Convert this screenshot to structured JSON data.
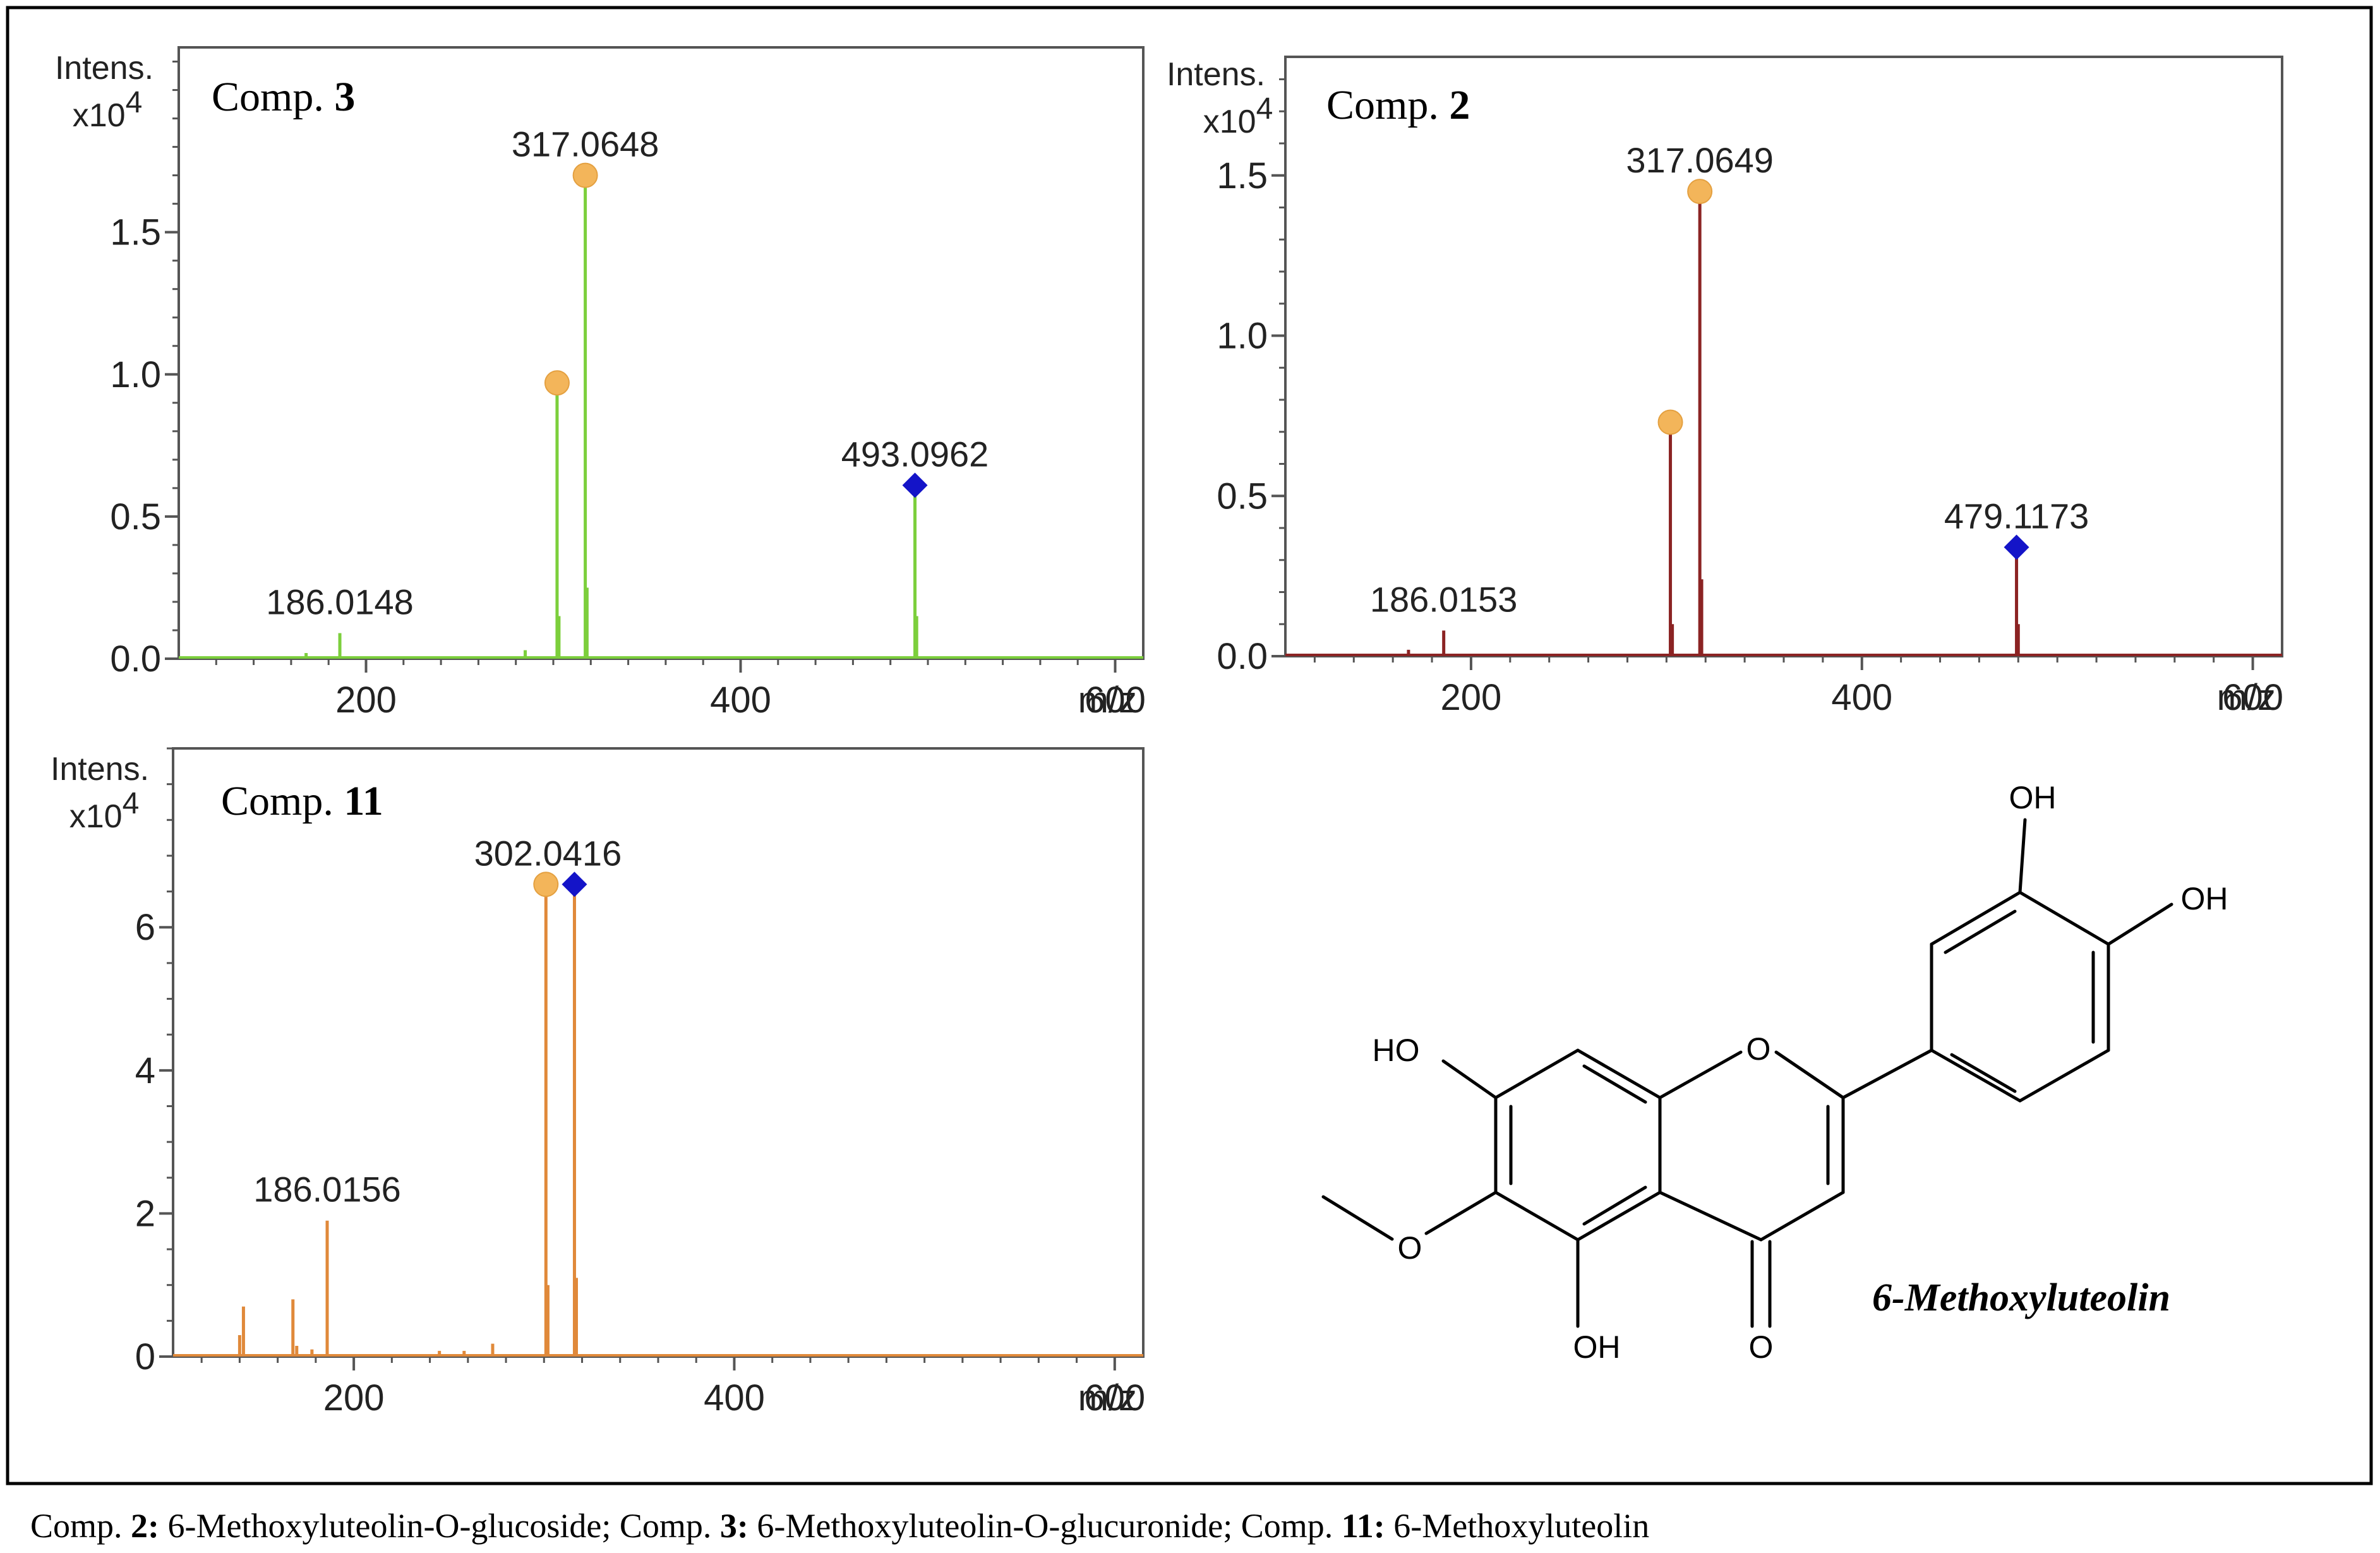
{
  "figure": {
    "caption": [
      {
        "prefix": "Comp. ",
        "num": "2:",
        "text": " 6-Methoxyluteolin-O-glucoside; "
      },
      {
        "prefix": "Comp. ",
        "num": "3:",
        "text": " 6-Methoxyluteolin-O-glucuronide; "
      },
      {
        "prefix": "Comp. ",
        "num": "11:",
        "text": " 6-Methoxyluteolin"
      }
    ],
    "structure": {
      "name": "6-Methoxyluteolin",
      "labels": {
        "oh_top": "OH",
        "oh_right": "OH",
        "ho_left": "HO",
        "o_ring": "O",
        "o_methoxy": "O",
        "oh_bottom": "OH",
        "o_carbonyl": "O"
      }
    }
  },
  "chart_data": [
    {
      "type": "bar",
      "subtype": "mass-spectrum",
      "panel": "top-left",
      "title_prefix": "Comp. ",
      "title_number": "3",
      "ylabel": "Intens.",
      "yscale_label": "x10",
      "yscale_exp": "4",
      "xlabel": "m/z",
      "xlim": [
        100,
        615
      ],
      "ylim": [
        0,
        2.15
      ],
      "xticks": [
        200,
        400,
        600
      ],
      "yticks": [
        0.0,
        0.5,
        1.0,
        1.5
      ],
      "ytick_labels": [
        "0.0",
        "0.5",
        "1.0",
        "1.5"
      ],
      "ytick_minor_step": 0.1,
      "series_color": "#7ccf3c",
      "peaks": [
        {
          "mz": 168,
          "intensity": 0.02
        },
        {
          "mz": 186.0148,
          "intensity": 0.09
        },
        {
          "mz": 285,
          "intensity": 0.03
        },
        {
          "mz": 302,
          "intensity": 0.97
        },
        {
          "mz": 303,
          "intensity": 0.15
        },
        {
          "mz": 317.0648,
          "intensity": 1.7
        },
        {
          "mz": 318,
          "intensity": 0.25
        },
        {
          "mz": 493.0962,
          "intensity": 0.61
        },
        {
          "mz": 494,
          "intensity": 0.15
        }
      ],
      "peak_labels": [
        {
          "mz": 186.0148,
          "text": "186.0148"
        },
        {
          "mz": 317.0648,
          "text": "317.0648"
        },
        {
          "mz": 493.0962,
          "text": "493.0962"
        }
      ],
      "markers": [
        {
          "mz": 302,
          "intensity": 0.97,
          "shape": "circle"
        },
        {
          "mz": 317.0648,
          "intensity": 1.7,
          "shape": "circle"
        },
        {
          "mz": 493.0962,
          "intensity": 0.61,
          "shape": "diamond"
        }
      ]
    },
    {
      "type": "bar",
      "subtype": "mass-spectrum",
      "panel": "top-right",
      "title_prefix": "Comp. ",
      "title_number": "2",
      "ylabel": "Intens.",
      "yscale_label": "x10",
      "yscale_exp": "4",
      "xlabel": "m/z",
      "xlim": [
        105,
        615
      ],
      "ylim": [
        0,
        1.87
      ],
      "xticks": [
        200,
        400,
        600
      ],
      "yticks": [
        0.0,
        0.5,
        1.0,
        1.5
      ],
      "ytick_labels": [
        "0.0",
        "0.5",
        "1.0",
        "1.5"
      ],
      "ytick_minor_step": 0.1,
      "series_color": "#8b2323",
      "peaks": [
        {
          "mz": 168,
          "intensity": 0.02
        },
        {
          "mz": 186.0153,
          "intensity": 0.08
        },
        {
          "mz": 302,
          "intensity": 0.73
        },
        {
          "mz": 303,
          "intensity": 0.1
        },
        {
          "mz": 317.0649,
          "intensity": 1.45
        },
        {
          "mz": 318,
          "intensity": 0.24
        },
        {
          "mz": 479.1173,
          "intensity": 0.34
        },
        {
          "mz": 480,
          "intensity": 0.1
        }
      ],
      "peak_labels": [
        {
          "mz": 186.0153,
          "text": "186.0153"
        },
        {
          "mz": 317.0649,
          "text": "317.0649"
        },
        {
          "mz": 479.1173,
          "text": "479.1173"
        }
      ],
      "markers": [
        {
          "mz": 302,
          "intensity": 0.73,
          "shape": "circle"
        },
        {
          "mz": 317.0649,
          "intensity": 1.45,
          "shape": "circle"
        },
        {
          "mz": 479.1173,
          "intensity": 0.34,
          "shape": "diamond"
        }
      ]
    },
    {
      "type": "bar",
      "subtype": "mass-spectrum",
      "panel": "bottom-left",
      "title_prefix": "Comp. ",
      "title_number": "11",
      "ylabel": "Intens.",
      "yscale_label": "x10",
      "yscale_exp": "4",
      "xlabel": "m/z",
      "xlim": [
        105,
        615
      ],
      "ylim": [
        0,
        8.5
      ],
      "xticks": [
        200,
        400,
        600
      ],
      "yticks": [
        0,
        2,
        4,
        6
      ],
      "ytick_labels": [
        "0",
        "2",
        "4",
        "6"
      ],
      "ytick_minor_step": 0.5,
      "series_color": "#e0893a",
      "peaks": [
        {
          "mz": 140,
          "intensity": 0.3
        },
        {
          "mz": 142,
          "intensity": 0.7
        },
        {
          "mz": 168,
          "intensity": 0.8
        },
        {
          "mz": 170,
          "intensity": 0.15
        },
        {
          "mz": 178,
          "intensity": 0.1
        },
        {
          "mz": 186.0156,
          "intensity": 1.9
        },
        {
          "mz": 245,
          "intensity": 0.08
        },
        {
          "mz": 258,
          "intensity": 0.08
        },
        {
          "mz": 273,
          "intensity": 0.18
        },
        {
          "mz": 301,
          "intensity": 6.6
        },
        {
          "mz": 302.0416,
          "intensity": 1.0
        },
        {
          "mz": 316,
          "intensity": 6.6
        },
        {
          "mz": 317,
          "intensity": 1.1
        }
      ],
      "peak_labels": [
        {
          "mz": 186.0156,
          "text": "186.0156"
        },
        {
          "mz": 302.0416,
          "text": "302.0416"
        }
      ],
      "markers": [
        {
          "mz": 301,
          "intensity": 6.6,
          "shape": "circle"
        },
        {
          "mz": 316,
          "intensity": 6.6,
          "shape": "diamond"
        }
      ]
    }
  ]
}
